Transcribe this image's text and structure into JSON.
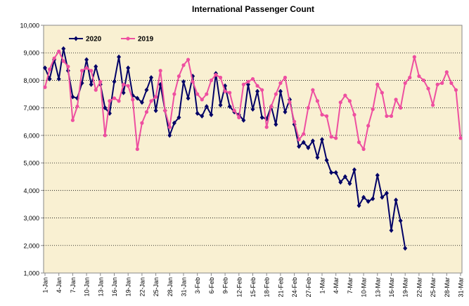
{
  "chart_data": {
    "type": "line",
    "title": "International Passenger Count",
    "categories": [
      "1-Jan",
      null,
      null,
      "4-Jan",
      null,
      null,
      "7-Jan",
      null,
      null,
      "10-Jan",
      null,
      null,
      "13-Jan",
      null,
      null,
      "16-Jan",
      null,
      null,
      "19-Jan",
      null,
      null,
      "22-Jan",
      null,
      null,
      "25-Jan",
      null,
      null,
      "28-Jan",
      null,
      null,
      "31-Jan",
      null,
      null,
      "3-Feb",
      null,
      null,
      "6-Feb",
      null,
      null,
      "9-Feb",
      null,
      null,
      "12-Feb",
      null,
      null,
      "15-Feb",
      null,
      null,
      "18-Feb",
      null,
      null,
      "21-Feb",
      null,
      null,
      "24-Feb",
      null,
      null,
      "27-Feb",
      null,
      null,
      "1-Mar",
      null,
      null,
      "4-Mar",
      null,
      null,
      "7-Mar",
      null,
      null,
      "10-Mar",
      null,
      null,
      "13-Mar",
      null,
      null,
      "16-Mar",
      null,
      null,
      "19-Mar",
      null,
      null,
      "22-Mar",
      null,
      null,
      "25-Mar",
      null,
      null,
      "28-Mar",
      null,
      null,
      "31-Mar"
    ],
    "series": [
      {
        "name": "2020",
        "color": "#000066",
        "marker": "diamond",
        "values": [
          8450,
          8050,
          8750,
          8050,
          9150,
          8350,
          7400,
          7350,
          7900,
          8750,
          7850,
          8500,
          7850,
          7000,
          6800,
          7950,
          8850,
          7550,
          8450,
          7450,
          7350,
          7200,
          7650,
          8100,
          6900,
          7850,
          6900,
          6000,
          6450,
          6650,
          7950,
          7350,
          8150,
          6800,
          6700,
          7050,
          6750,
          8250,
          7100,
          7800,
          7050,
          6850,
          6750,
          6550,
          7850,
          6950,
          7600,
          6650,
          6600,
          7050,
          6400,
          7600,
          6850,
          7300,
          6400,
          5600,
          5750,
          5550,
          5800,
          5200,
          5850,
          5100,
          4650,
          4650,
          4300,
          4500,
          4250,
          4750,
          3450,
          3750,
          3600,
          3700,
          4550,
          3750,
          3900,
          2550,
          3650,
          2900,
          1900,
          null,
          null,
          null,
          null,
          null,
          null,
          null,
          null,
          null,
          null,
          null,
          null
        ]
      },
      {
        "name": "2019",
        "color": "#ee4fa0",
        "marker": "circle",
        "values": [
          7750,
          8400,
          8800,
          9050,
          8700,
          8500,
          6550,
          7050,
          8350,
          8450,
          8350,
          7650,
          7950,
          6000,
          7250,
          7350,
          7250,
          7850,
          7800,
          7300,
          5500,
          6450,
          6850,
          7250,
          7400,
          8350,
          6900,
          6300,
          7500,
          8150,
          8550,
          8750,
          7950,
          7500,
          7300,
          7500,
          8000,
          8200,
          8100,
          7600,
          7550,
          6900,
          6650,
          7850,
          7950,
          8050,
          7800,
          7650,
          6300,
          7050,
          7500,
          7900,
          8100,
          7200,
          6500,
          5850,
          6050,
          7000,
          7650,
          7250,
          6750,
          6700,
          5950,
          5900,
          7200,
          7450,
          7250,
          6750,
          5750,
          5500,
          6350,
          6950,
          7850,
          7550,
          6700,
          6700,
          7300,
          7000,
          7900,
          8100,
          8850,
          8150,
          8000,
          7700,
          7100,
          7850,
          7900,
          8300,
          7900,
          7650,
          5900
        ]
      }
    ],
    "ylim": [
      1000,
      10000
    ],
    "yticks": [
      {
        "value": 1000,
        "label": "1,000"
      },
      {
        "value": 2000,
        "label": "2,000"
      },
      {
        "value": 3000,
        "label": "3,000"
      },
      {
        "value": 4000,
        "label": "4,000"
      },
      {
        "value": 5000,
        "label": "5,000"
      },
      {
        "value": 6000,
        "label": "6,000"
      },
      {
        "value": 7000,
        "label": "7,000"
      },
      {
        "value": 8000,
        "label": "8,000"
      },
      {
        "value": 9000,
        "label": "9,000"
      },
      {
        "value": 10000,
        "label": "10,000"
      }
    ],
    "grid": true,
    "legend": "upper left",
    "background": "#f9f0d2"
  }
}
